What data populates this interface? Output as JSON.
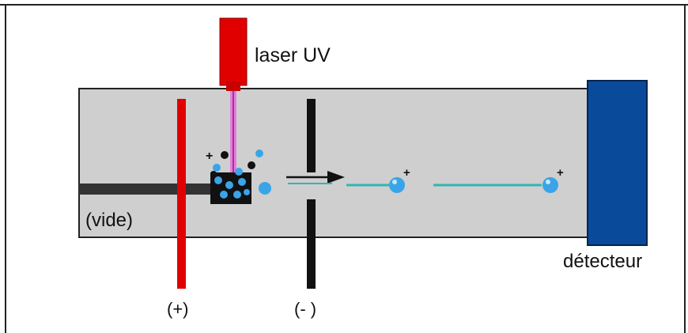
{
  "labels": {
    "laser": "laser UV",
    "vacuum": "(vide)",
    "positive_plate": "(+)",
    "negative_plate": "(- )",
    "detector": "détecteur",
    "ion_charge": "+"
  },
  "colors": {
    "tube": "#cfcfcf",
    "laser_body": "#e00000",
    "laser_beam": "#e07ad8",
    "positive_plate": "#e00000",
    "negative_plate": "#111111",
    "detector": "#0a4a9a",
    "ion": "#3aa4e8",
    "neutral_particle": "#111111",
    "ion_trail": "#33b5b5",
    "sample_holder": "#333333"
  },
  "icons": {
    "flight_direction": "arrow-right-icon"
  }
}
